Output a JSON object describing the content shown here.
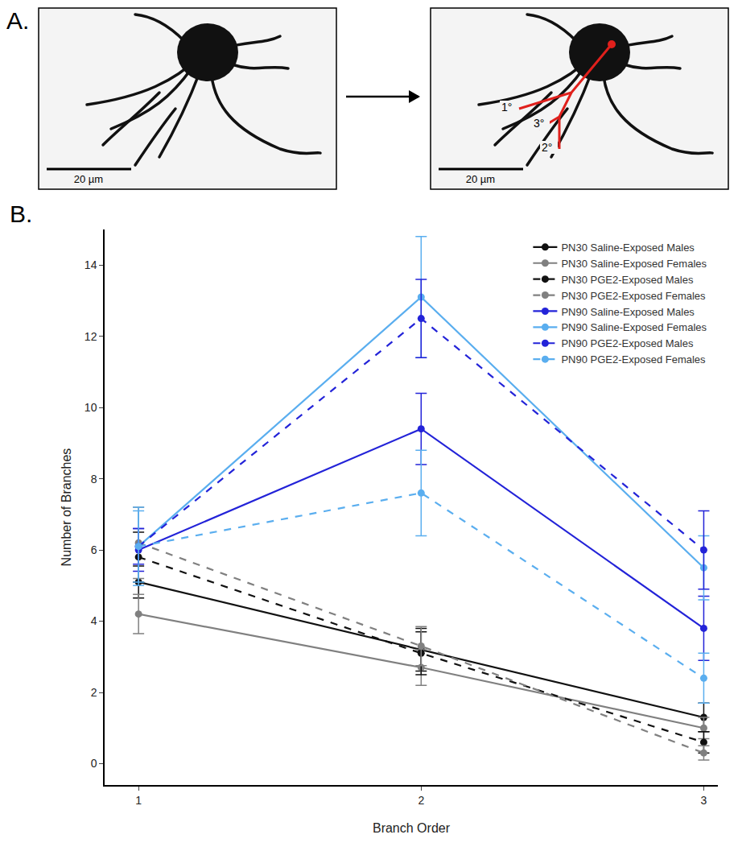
{
  "panel_a": {
    "letter": "A.",
    "scale_bar": "20 µm",
    "branch_labels": [
      "1°",
      "3°",
      "2°"
    ]
  },
  "panel_b_letter": "B.",
  "chart_data": {
    "type": "line",
    "x_label": "Branch Order",
    "y_label": "Number of Branches",
    "x": [
      1,
      2,
      3
    ],
    "xlim": [
      0.88,
      3.05
    ],
    "xticks": [
      1,
      2,
      3
    ],
    "ylim": [
      -0.6,
      15
    ],
    "yticks": [
      0,
      2,
      4,
      6,
      8,
      10,
      12,
      14
    ],
    "grid": false,
    "legend": "top right",
    "marker": "circle",
    "series": [
      {
        "name": "PN30 Saline-Exposed Males",
        "color": "#111111",
        "line_style": "solid",
        "values": [
          5.1,
          3.2,
          1.3
        ],
        "errors": [
          0.45,
          0.6,
          0.4
        ]
      },
      {
        "name": "PN30 Saline-Exposed Females",
        "color": "#808080",
        "line_style": "solid",
        "values": [
          4.2,
          2.7,
          1.0
        ],
        "errors": [
          0.55,
          0.5,
          0.3
        ]
      },
      {
        "name": "PN30 PGE2-Exposed Males",
        "color": "#111111",
        "line_style": "dash",
        "values": [
          5.8,
          3.1,
          0.6
        ],
        "errors": [
          0.7,
          0.6,
          0.3
        ]
      },
      {
        "name": "PN30 PGE2-Exposed Females",
        "color": "#808080",
        "line_style": "dash",
        "values": [
          6.2,
          3.3,
          0.3
        ],
        "errors": [
          1.0,
          0.55,
          0.2
        ]
      },
      {
        "name": "PN90 Saline-Exposed Males",
        "color": "#2323d8",
        "line_style": "solid",
        "values": [
          6.0,
          9.4,
          3.8
        ],
        "errors": [
          0.6,
          1.0,
          0.9
        ]
      },
      {
        "name": "PN90 Saline-Exposed Females",
        "color": "#5aaeef",
        "line_style": "solid",
        "values": [
          6.1,
          13.1,
          5.5
        ],
        "errors": [
          1.0,
          1.7,
          0.9
        ]
      },
      {
        "name": "PN90 PGE2-Exposed Males",
        "color": "#2323d8",
        "line_style": "dash",
        "values": [
          6.1,
          12.5,
          6.0
        ],
        "errors": [
          0.5,
          1.1,
          1.1
        ]
      },
      {
        "name": "PN90 PGE2-Exposed Females",
        "color": "#5aaeef",
        "line_style": "dash",
        "values": [
          6.1,
          7.6,
          2.4
        ],
        "errors": [
          1.1,
          1.2,
          0.7
        ]
      }
    ]
  }
}
